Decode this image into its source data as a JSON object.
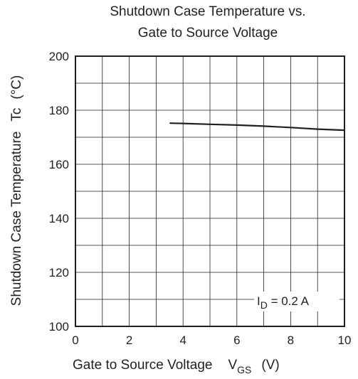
{
  "chart_data": {
    "type": "line",
    "title_line1": "Shutdown Case Temperature vs.",
    "title_line2": "Gate to Source Voltage",
    "xlabel": {
      "main": "Gate to Source Voltage",
      "symbol": "V",
      "subscript": "GS",
      "unit": "(V)"
    },
    "ylabel": {
      "main": "Shutdown Case Temperature",
      "symbol": "Tc",
      "unit": "(°C)"
    },
    "xlim": [
      0,
      10
    ],
    "ylim": [
      100,
      200
    ],
    "x_ticks": [
      "0",
      "2",
      "4",
      "6",
      "8",
      "10"
    ],
    "y_ticks": [
      "100",
      "120",
      "140",
      "160",
      "180",
      "200"
    ],
    "grid": true,
    "annotation": {
      "symbol": "I",
      "subscript": "D",
      "text": " = 0.2 A"
    },
    "series": [
      {
        "x": [
          3.5,
          4.0,
          5.0,
          6.0,
          7.0,
          8.0,
          9.0,
          10.0
        ],
        "y": [
          175.2,
          175.1,
          174.8,
          174.5,
          174.1,
          173.6,
          173.0,
          172.6
        ]
      }
    ]
  }
}
